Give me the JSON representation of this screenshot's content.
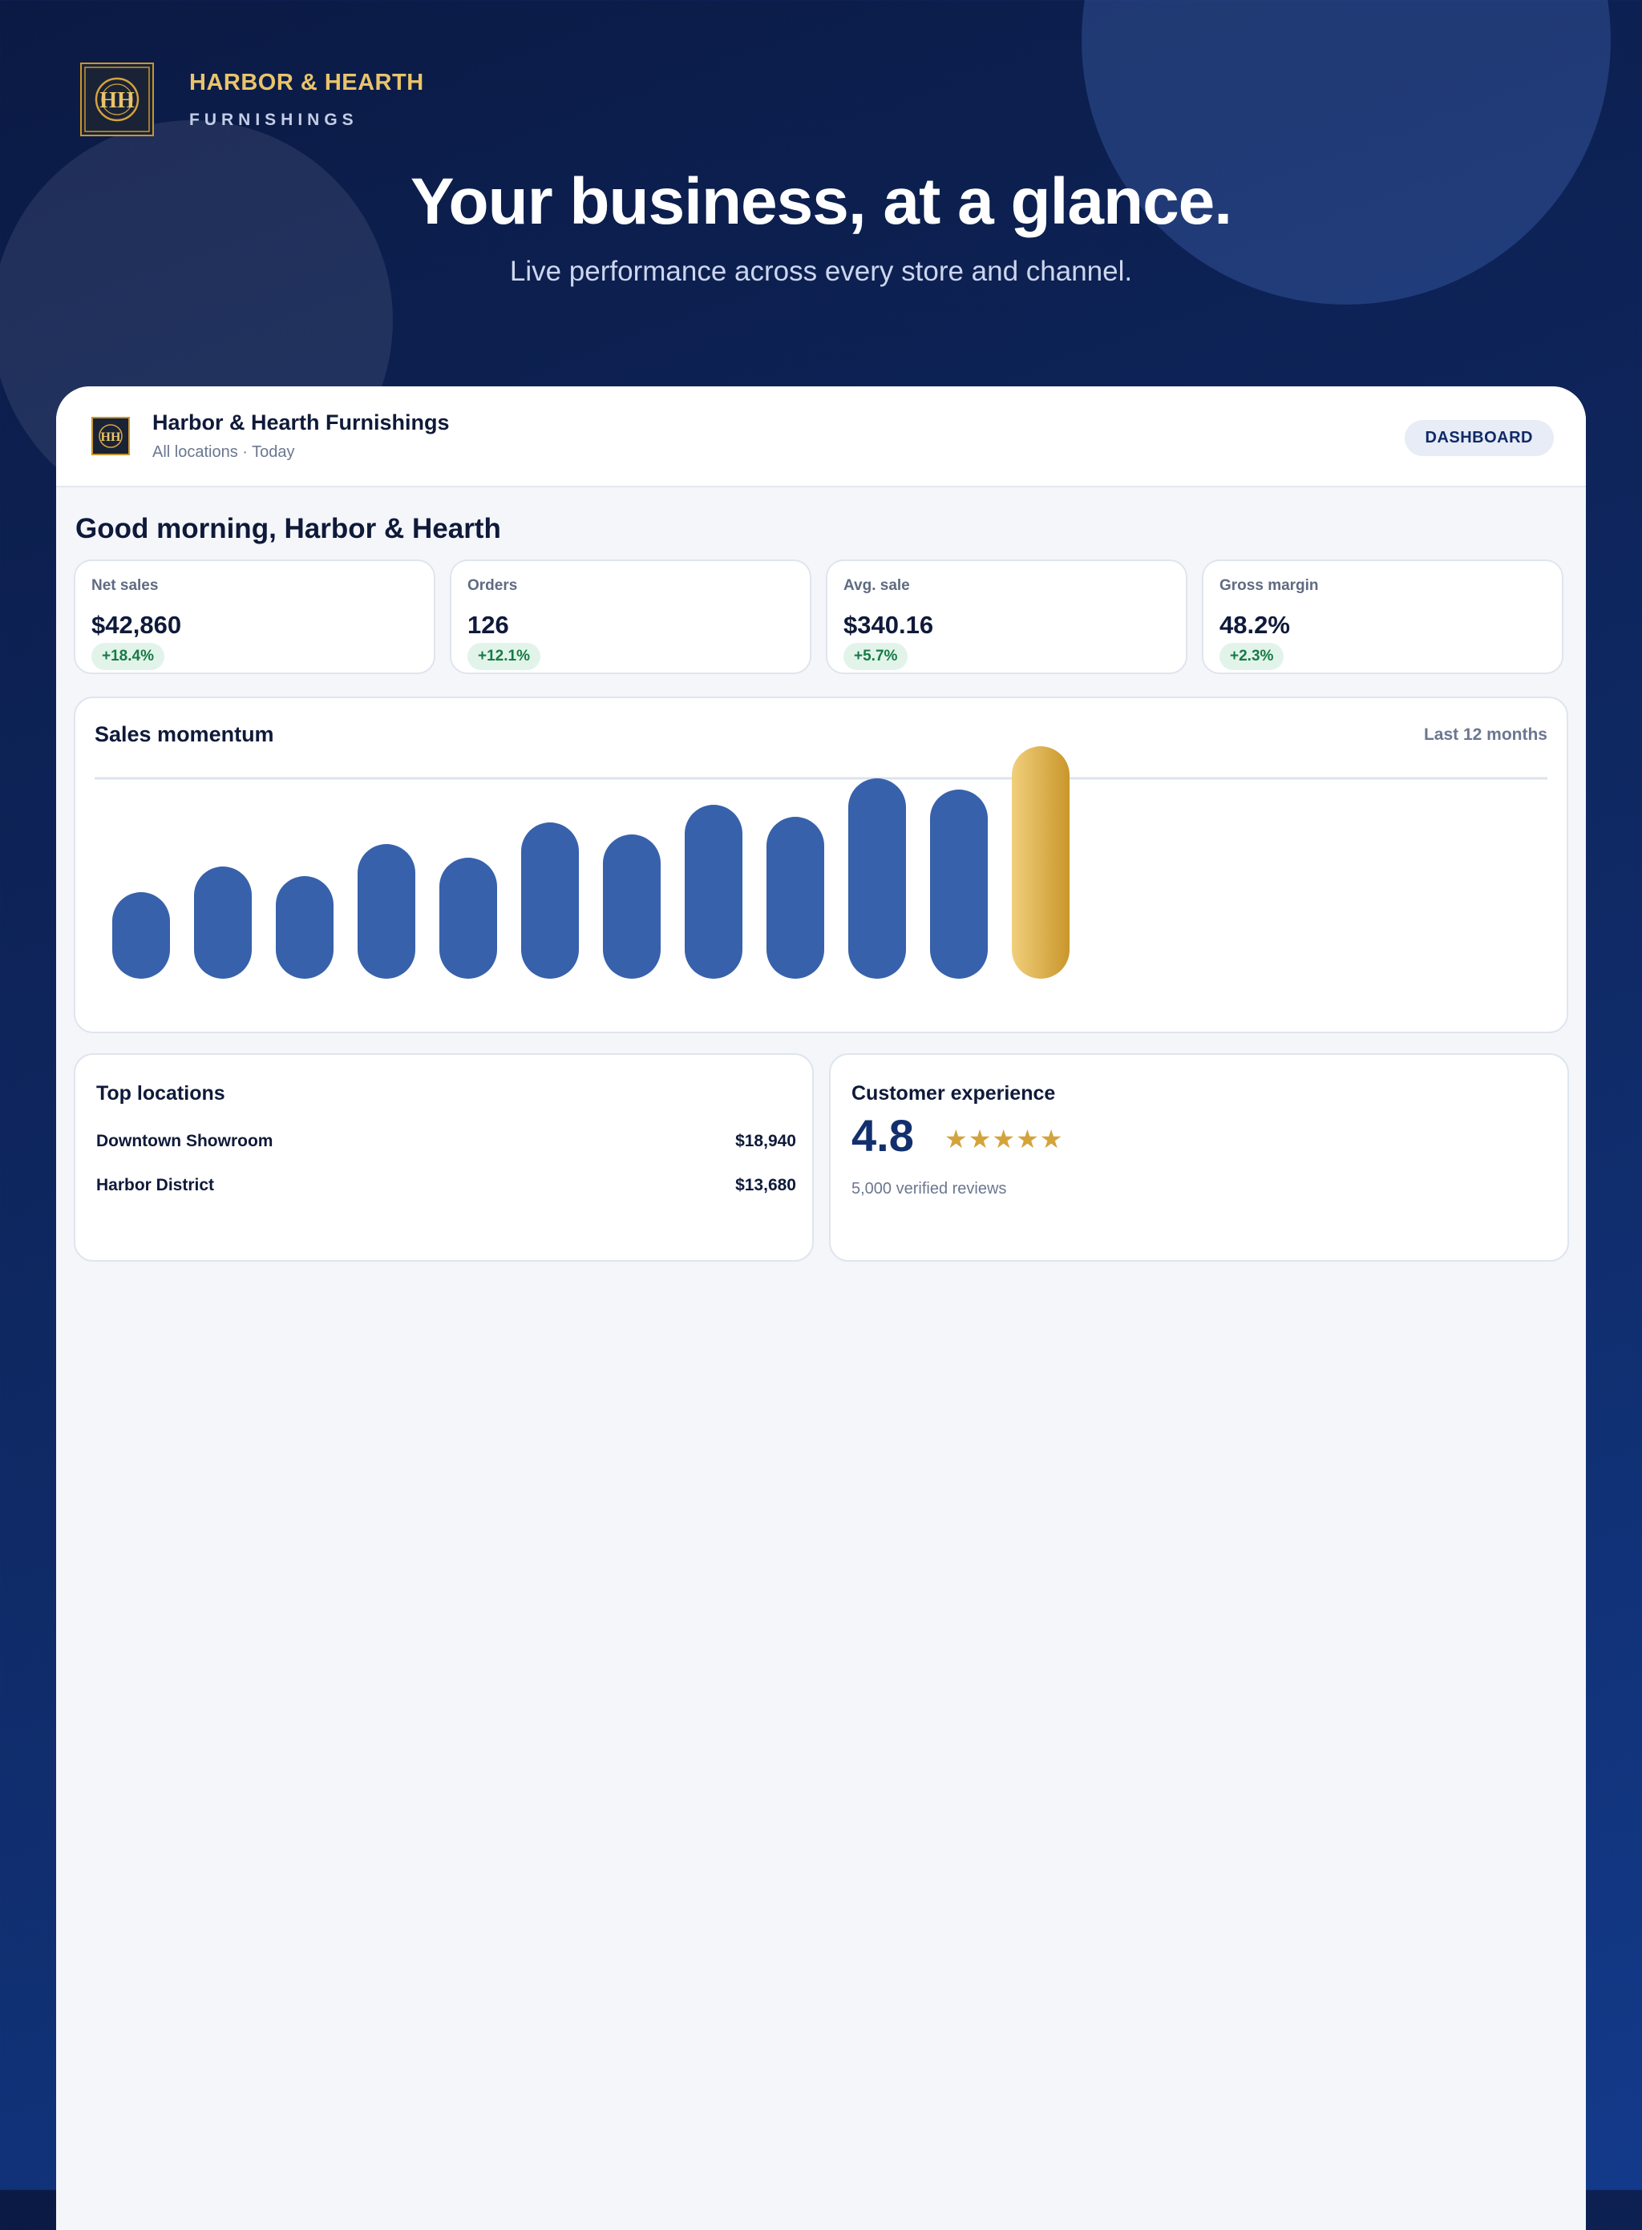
{
  "brand": {
    "name": "HARBOR & HEARTH",
    "tagline": "FURNISHINGS",
    "logo_text": "HH"
  },
  "hero": {
    "title": "Your business, at a glance.",
    "subtitle": "Live performance across every store and channel."
  },
  "app": {
    "title": "Harbor & Hearth Furnishings",
    "meta": "All locations · Today",
    "badge": "DASHBOARD",
    "greeting": "Good morning, Harbor & Hearth"
  },
  "kpis": [
    {
      "label": "Net sales",
      "value": "$42,860",
      "delta": "+18.4%"
    },
    {
      "label": "Orders",
      "value": "126",
      "delta": "+12.1%"
    },
    {
      "label": "Avg. sale",
      "value": "$340.16",
      "delta": "+5.7%"
    },
    {
      "label": "Gross margin",
      "value": "48.2%",
      "delta": "+2.3%"
    }
  ],
  "chart": {
    "title": "Sales momentum",
    "period": "Last 12 months"
  },
  "chart_data": {
    "type": "bar",
    "values": [
      108,
      140,
      128,
      168,
      151,
      195,
      180,
      217,
      202,
      250,
      236,
      290
    ],
    "highlight_index": 11,
    "ylim": [
      0,
      290
    ],
    "grid": true,
    "colors": {
      "bar": "#3761ab",
      "highlight_light": "#f1cf7b",
      "highlight_dark": "#c9962b"
    }
  },
  "locations": {
    "title": "Top locations",
    "rows": [
      {
        "name": "Downtown Showroom",
        "value": "$18,940"
      },
      {
        "name": "Harbor District",
        "value": "$13,680"
      }
    ]
  },
  "experience": {
    "title": "Customer experience",
    "score": "4.8",
    "stars": "★★★★★",
    "rating": 4.8,
    "reviews": "5,000 verified reviews"
  },
  "colors": {
    "navy": "#0f2a66",
    "gold": "#e9c46a",
    "positive": "#177a45"
  }
}
